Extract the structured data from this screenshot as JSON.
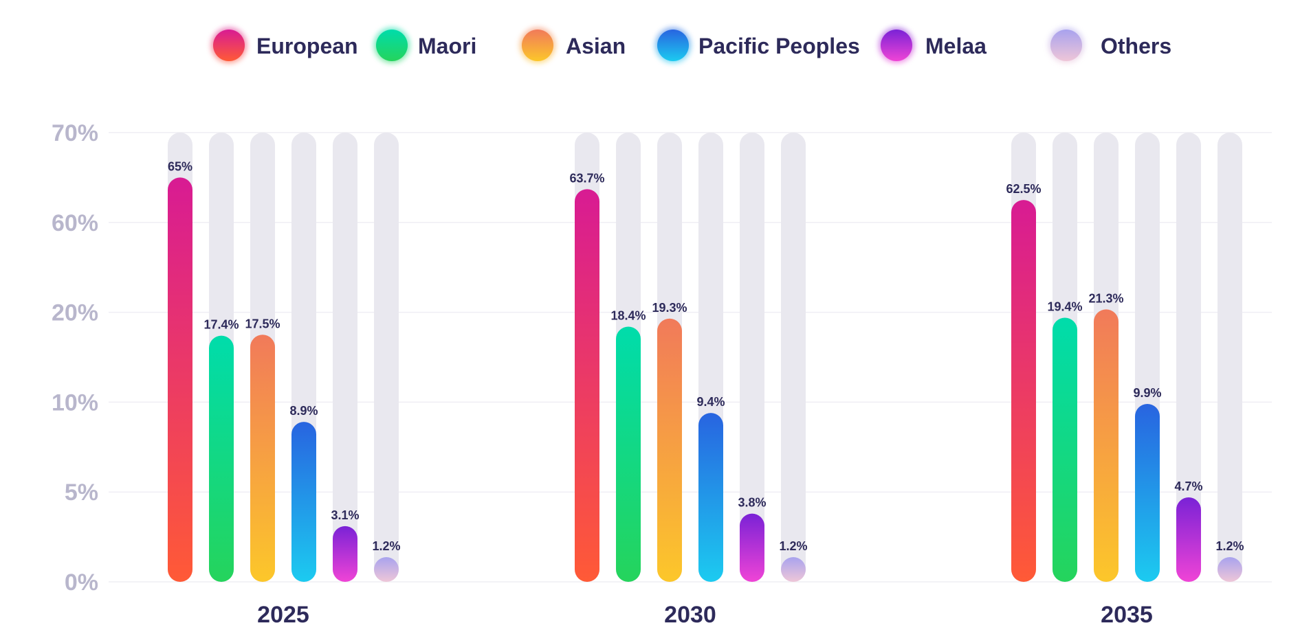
{
  "chart_data": {
    "type": "bar",
    "title": "",
    "xlabel": "",
    "ylabel": "",
    "categories": [
      "2025",
      "2030",
      "2035"
    ],
    "y_ticks": [
      "0%",
      "5%",
      "10%",
      "20%",
      "60%",
      "70%"
    ],
    "ylim": [
      0,
      70
    ],
    "grid": true,
    "legend_position": "top",
    "series": [
      {
        "name": "European",
        "values": [
          65,
          63.7,
          62.5
        ],
        "labels": [
          "65%",
          "63.7%",
          "62.5%"
        ],
        "color_top": "#d81b93",
        "color_bottom": "#ff5a36"
      },
      {
        "name": "Maori",
        "values": [
          17.4,
          18.4,
          19.4
        ],
        "labels": [
          "17.4%",
          "18.4%",
          "19.4%"
        ],
        "color_top": "#00dcab",
        "color_bottom": "#25d45c"
      },
      {
        "name": "Asian",
        "values": [
          17.5,
          19.3,
          21.3
        ],
        "labels": [
          "17.5%",
          "19.3%",
          "21.3%"
        ],
        "color_top": "#f17a5a",
        "color_bottom": "#fcc72a"
      },
      {
        "name": "Pacific Peoples",
        "values": [
          8.9,
          9.4,
          9.9
        ],
        "labels": [
          "8.9%",
          "9.4%",
          "9.9%"
        ],
        "color_top": "#2864e0",
        "color_bottom": "#1ccbf0"
      },
      {
        "name": "Melaa",
        "values": [
          3.1,
          3.8,
          4.7
        ],
        "labels": [
          "3.1%",
          "3.8%",
          "4.7%"
        ],
        "color_top": "#7a22d6",
        "color_bottom": "#f044d6"
      },
      {
        "name": "Others",
        "values": [
          1.2,
          1.2,
          1.2
        ],
        "labels": [
          "1.2%",
          "1.2%",
          "1.2%"
        ],
        "color_top": "#a8a2ee",
        "color_bottom": "#efc6d8"
      }
    ],
    "colors": {
      "track": "#e9e8ef",
      "grid": "#efeef4",
      "text": "#2d2a5a",
      "tick": "#b8b6cc"
    }
  }
}
